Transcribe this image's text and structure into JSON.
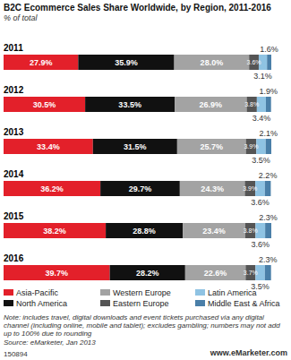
{
  "chart_data": {
    "type": "bar",
    "title": "B2C Ecommerce Sales Share Worldwide, by Region, 2011-2016",
    "subtitle": "% of total",
    "orientation": "horizontal",
    "stacked": true,
    "data_labels": true,
    "tick_labels": "y",
    "grid": false,
    "categories": [
      "2011",
      "2012",
      "2013",
      "2014",
      "2015",
      "2016"
    ],
    "xlim": [
      0,
      100.1
    ],
    "series": [
      {
        "name": "Asia-Pacific",
        "color": "#e3202a",
        "values": [
          27.9,
          30.5,
          33.4,
          36.2,
          38.2,
          39.7
        ],
        "value_labels": [
          "27.9%",
          "30.5%",
          "33.4%",
          "36.2%",
          "38.2%",
          "39.7%"
        ]
      },
      {
        "name": "North America",
        "color": "#111111",
        "values": [
          35.9,
          33.5,
          31.5,
          29.7,
          28.8,
          28.2
        ],
        "value_labels": [
          "35.9%",
          "33.5%",
          "31.5%",
          "29.7%",
          "28.8%",
          "28.2%"
        ]
      },
      {
        "name": "Western Europe",
        "color": "#a3a3a3",
        "values": [
          28.0,
          26.9,
          25.7,
          24.3,
          23.4,
          22.6
        ],
        "value_labels": [
          "28.0%",
          "26.9%",
          "25.7%",
          "24.3%",
          "23.4%",
          "22.6%"
        ]
      },
      {
        "name": "Eastern Europe",
        "color": "#555555",
        "values": [
          3.6,
          3.8,
          3.9,
          3.9,
          3.8,
          3.7
        ],
        "value_labels": [
          "3.6%",
          "3.8%",
          "3.9%",
          "3.9%",
          "3.8%",
          "3.7%"
        ]
      },
      {
        "name": "Latin America",
        "color": "#8fc3e3",
        "values": [
          3.1,
          3.4,
          3.5,
          3.6,
          3.6,
          3.5
        ],
        "value_labels": [
          "3.1%",
          "3.4%",
          "3.5%",
          "3.6%",
          "3.6%",
          "3.5%"
        ]
      },
      {
        "name": "Middle East & Africa",
        "color": "#4a7fa8",
        "values": [
          1.6,
          1.9,
          2.1,
          2.2,
          2.3,
          2.3
        ],
        "value_labels": [
          "1.6%",
          "1.9%",
          "2.1%",
          "2.2%",
          "2.3%",
          "2.3%"
        ]
      }
    ],
    "annotations": [
      "Note: includes travel, digital downloads and event tickets purchased via any digital channel (including online, mobile and tablet); excludes gambling; numbers may not add up to 100% due to rounding",
      "Source: eMarketer, Jan 2013",
      "150894",
      "www.eMarketer.com"
    ]
  }
}
